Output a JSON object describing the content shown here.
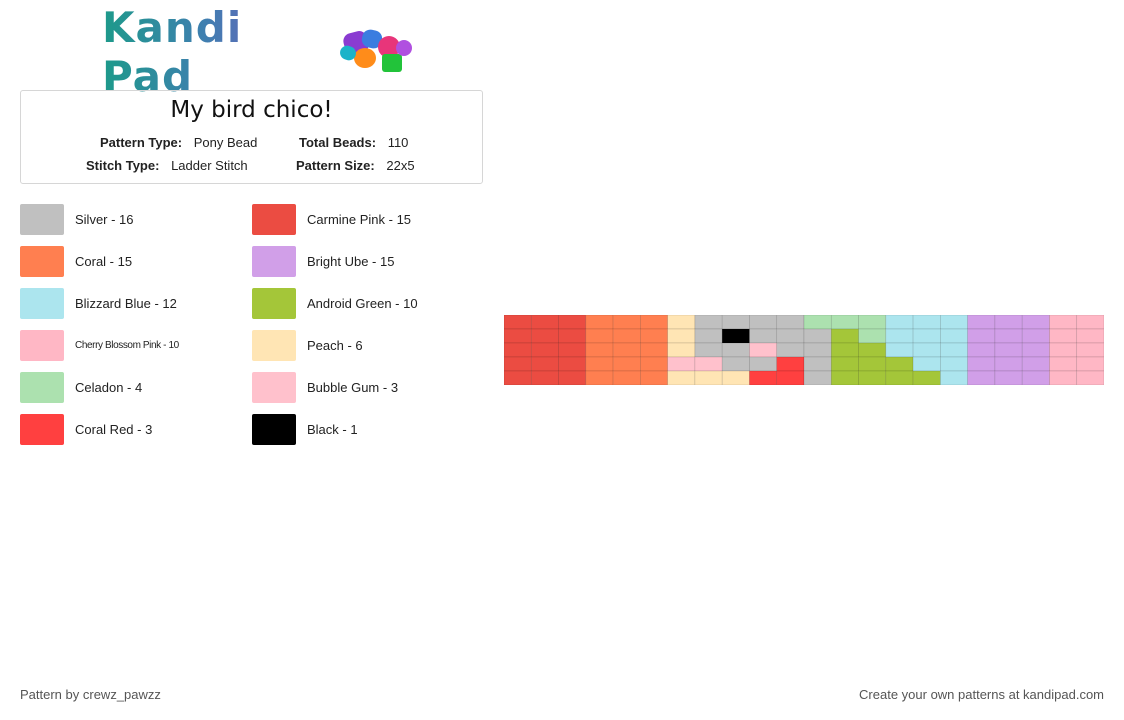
{
  "brand": {
    "name": "Kandi Pad"
  },
  "pattern": {
    "title": "My bird chico!",
    "pattern_type_label": "Pattern Type:",
    "pattern_type": "Pony Bead",
    "stitch_type_label": "Stitch Type:",
    "stitch_type": "Ladder Stitch",
    "total_beads_label": "Total Beads:",
    "total_beads": "110",
    "pattern_size_label": "Pattern Size:",
    "pattern_size": "22x5"
  },
  "legend": [
    {
      "label": "Silver - 16",
      "color": "#c0c0c0"
    },
    {
      "label": "Carmine Pink - 15",
      "color": "#eb4c42"
    },
    {
      "label": "Coral - 15",
      "color": "#ff7f50"
    },
    {
      "label": "Bright Ube - 15",
      "color": "#d19fe8"
    },
    {
      "label": "Blizzard Blue - 12",
      "color": "#ace5ee"
    },
    {
      "label": "Android Green - 10",
      "color": "#a4c639"
    },
    {
      "label": "Cherry Blossom Pink - 10",
      "color": "#ffb7c5"
    },
    {
      "label": "Peach - 6",
      "color": "#ffe5b4"
    },
    {
      "label": "Celadon - 4",
      "color": "#ace1af"
    },
    {
      "label": "Bubble Gum - 3",
      "color": "#ffc1cc"
    },
    {
      "label": "Coral Red - 3",
      "color": "#ff4040"
    },
    {
      "label": "Black - 1",
      "color": "#000000"
    }
  ],
  "palette": {
    "S": "#c0c0c0",
    "C": "#eb4c42",
    "O": "#ff7f50",
    "U": "#d19fe8",
    "B": "#ace5ee",
    "G": "#a4c639",
    "P": "#ffb7c5",
    "H": "#ffe5b4",
    "L": "#ace1af",
    "M": "#ffc1cc",
    "R": "#ff4040",
    "K": "#000000"
  },
  "bead_grid": [
    "CCCOOOHSSSSLLLBBBUUUPP",
    "CCCOOOHSKSSSGLBBBUUUPP",
    "CCCOOOHSSMSSGGBBBUUUPP",
    "CCCOOOMMSSRSGGGBBUUUPP",
    "CCCOOOHHHRRSGGGGBUUUPP"
  ],
  "footer": {
    "author": "Pattern by crewz_pawzz",
    "promo": "Create your own patterns at kandipad.com"
  }
}
